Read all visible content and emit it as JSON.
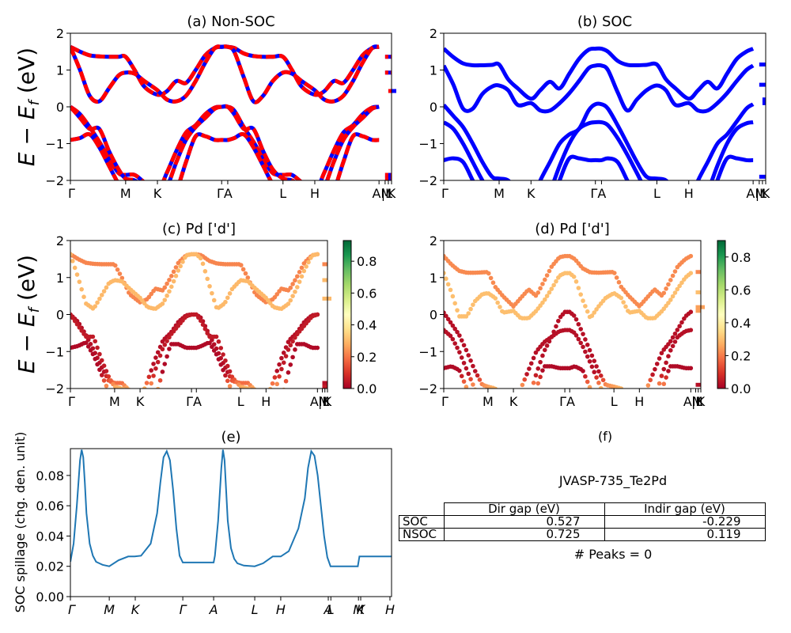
{
  "chart_data": [
    {
      "id": "a",
      "type": "line",
      "title": "(a) Non-SOC",
      "ylabel": "E − E_f (eV)",
      "ylim": [
        -2,
        2
      ],
      "yticks": [
        -2,
        -1,
        0,
        1,
        2
      ],
      "kpath_ticks": [
        {
          "label": "Γ",
          "k": 0.0
        },
        {
          "label": "M",
          "k": 0.172
        },
        {
          "label": "K",
          "k": 0.271
        },
        {
          "label": "ΓA",
          "k": 0.48
        },
        {
          "label": "L",
          "k": 0.662
        },
        {
          "label": "H",
          "k": 0.761
        },
        {
          "label": "AM",
          "k": 0.97
        },
        {
          "label": "|L",
          "k": 0.985
        },
        {
          "label": "K",
          "k": 1.0
        }
      ],
      "tick_marks_k": [
        0,
        0.172,
        0.271,
        0.471,
        0.49,
        0.662,
        0.761,
        0.961,
        0.98,
        0.99,
        1.0
      ],
      "style": "red-blue-dashed",
      "k": [
        0,
        0.03,
        0.06,
        0.09,
        0.12,
        0.15,
        0.172,
        0.2,
        0.23,
        0.271,
        0.3,
        0.33,
        0.36,
        0.39,
        0.42,
        0.45,
        0.471,
        0.49,
        0.51,
        0.54,
        0.57,
        0.6,
        0.63,
        0.662,
        0.69,
        0.72,
        0.761,
        0.79,
        0.82,
        0.85,
        0.88,
        0.91,
        0.94,
        0.961
      ],
      "bands": [
        [
          1.63,
          1.5,
          1.4,
          1.37,
          1.36,
          1.36,
          1.36,
          1.0,
          0.55,
          0.33,
          0.42,
          0.7,
          0.65,
          1.0,
          1.4,
          1.6,
          1.63,
          1.63,
          1.6,
          1.45,
          1.38,
          1.36,
          1.36,
          1.36,
          1.0,
          0.55,
          0.33,
          0.42,
          0.7,
          0.65,
          1.0,
          1.4,
          1.6,
          1.63
        ],
        [
          1.63,
          1.0,
          0.3,
          0.15,
          0.5,
          0.85,
          0.93,
          0.9,
          0.7,
          0.45,
          0.2,
          0.15,
          0.3,
          0.7,
          1.2,
          1.6,
          1.63,
          1.63,
          1.5,
          0.8,
          0.15,
          0.3,
          0.7,
          0.93,
          0.9,
          0.7,
          0.45,
          0.2,
          0.15,
          0.3,
          0.7,
          1.2,
          1.6,
          1.63
        ],
        [
          0.0,
          -0.2,
          -0.55,
          -0.95,
          -1.4,
          -1.8,
          -1.85,
          -1.85,
          -2.05,
          -2.3,
          -1.8,
          -1.2,
          -0.7,
          -0.5,
          -0.2,
          -0.02,
          0.0,
          0.0,
          -0.1,
          -0.55,
          -0.95,
          -1.4,
          -1.8,
          -1.85,
          -1.85,
          -2.05,
          -2.3,
          -1.8,
          -1.2,
          -0.7,
          -0.5,
          -0.2,
          -0.02,
          0.0
        ],
        [
          0.0,
          -0.3,
          -0.6,
          -0.6,
          -1.2,
          -1.7,
          -1.95,
          -2.0,
          -2.2,
          -2.5,
          -2.2,
          -1.5,
          -0.9,
          -0.55,
          -0.3,
          -0.05,
          0.0,
          0.0,
          -0.2,
          -0.6,
          -0.6,
          -1.2,
          -1.7,
          -1.95,
          -2.0,
          -2.2,
          -2.5,
          -2.2,
          -1.5,
          -0.9,
          -0.55,
          -0.3,
          -0.05,
          0.0
        ],
        [
          -0.9,
          -0.85,
          -0.75,
          -1.1,
          -1.6,
          -2.1,
          -2.4,
          -2.6,
          -2.8,
          -3.0,
          -2.8,
          -2.3,
          -1.5,
          -0.8,
          -0.8,
          -0.9,
          -0.9,
          -0.9,
          -0.85,
          -0.75,
          -1.1,
          -1.6,
          -2.1,
          -2.4,
          -2.6,
          -2.8,
          -3.0,
          -2.8,
          -2.3,
          -1.5,
          -0.8,
          -0.8,
          -0.9,
          -0.9
        ]
      ],
      "tail_segment": [
        1.36,
        0.93,
        0.43,
        -1.85,
        -1.95
      ]
    },
    {
      "id": "b",
      "type": "line",
      "title": "(b) SOC",
      "ylim": [
        -2,
        2
      ],
      "yticks": [
        -2,
        -1,
        0,
        1,
        2
      ],
      "kpath_ticks": [
        {
          "label": "Γ",
          "k": 0.0
        },
        {
          "label": "M",
          "k": 0.172
        },
        {
          "label": "K",
          "k": 0.271
        },
        {
          "label": "ΓA",
          "k": 0.48
        },
        {
          "label": "L",
          "k": 0.662
        },
        {
          "label": "H",
          "k": 0.761
        },
        {
          "label": "AM",
          "k": 0.97
        },
        {
          "label": "|L",
          "k": 0.985
        },
        {
          "label": "K",
          "k": 1.0
        }
      ],
      "tick_marks_k": [
        0,
        0.172,
        0.271,
        0.471,
        0.49,
        0.662,
        0.761,
        0.961,
        0.98,
        0.99,
        1.0
      ],
      "style": "blue",
      "k": [
        0,
        0.03,
        0.06,
        0.09,
        0.12,
        0.15,
        0.172,
        0.2,
        0.23,
        0.271,
        0.3,
        0.33,
        0.36,
        0.39,
        0.42,
        0.45,
        0.471,
        0.49,
        0.51,
        0.54,
        0.57,
        0.6,
        0.63,
        0.662,
        0.69,
        0.72,
        0.761,
        0.79,
        0.82,
        0.85,
        0.88,
        0.91,
        0.94,
        0.961
      ],
      "bands": [
        [
          1.58,
          1.35,
          1.18,
          1.13,
          1.13,
          1.14,
          1.15,
          0.75,
          0.5,
          0.22,
          0.45,
          0.68,
          0.5,
          0.9,
          1.3,
          1.55,
          1.58,
          1.58,
          1.5,
          1.25,
          1.14,
          1.13,
          1.14,
          1.15,
          0.75,
          0.5,
          0.22,
          0.45,
          0.68,
          0.5,
          0.9,
          1.3,
          1.5,
          1.58
        ],
        [
          1.12,
          0.6,
          -0.05,
          -0.05,
          0.35,
          0.55,
          0.58,
          0.45,
          0.05,
          0.1,
          -0.1,
          -0.1,
          0.1,
          0.37,
          0.7,
          1.05,
          1.12,
          1.12,
          1.0,
          0.4,
          -0.1,
          0.2,
          0.45,
          0.58,
          0.45,
          0.05,
          0.1,
          -0.1,
          -0.1,
          0.1,
          0.37,
          0.7,
          1.0,
          1.12
        ],
        [
          0.05,
          -0.25,
          -0.55,
          -1.0,
          -1.5,
          -1.9,
          -1.95,
          -2.0,
          -2.3,
          -2.6,
          -2.0,
          -1.5,
          -1.0,
          -0.75,
          -0.6,
          -0.1,
          0.07,
          0.07,
          -0.05,
          -0.5,
          -1.0,
          -1.5,
          -1.9,
          -1.95,
          -2.0,
          -2.3,
          -2.6,
          -2.0,
          -1.5,
          -1.0,
          -0.75,
          -0.4,
          -0.05,
          0.07
        ],
        [
          -0.42,
          -0.6,
          -1.0,
          -1.5,
          -2.0,
          -2.4,
          -2.6,
          -2.8,
          -3.0,
          -3.2,
          -2.8,
          -2.3,
          -1.6,
          -1.0,
          -0.6,
          -0.45,
          -0.42,
          -0.42,
          -0.5,
          -0.85,
          -1.3,
          -1.8,
          -2.3,
          -2.6,
          -2.8,
          -3.0,
          -3.2,
          -2.8,
          -2.3,
          -1.6,
          -1.0,
          -0.6,
          -0.45,
          -0.42
        ],
        [
          -1.45,
          -1.4,
          -1.5,
          -2.0,
          -2.5,
          -2.9,
          -3.1,
          -3.2,
          -3.3,
          -3.4,
          -3.2,
          -2.8,
          -2.0,
          -1.4,
          -1.4,
          -1.45,
          -1.45,
          -1.45,
          -1.4,
          -1.5,
          -2.0,
          -2.5,
          -2.9,
          -3.1,
          -3.2,
          -3.3,
          -3.4,
          -3.2,
          -2.8,
          -2.0,
          -1.4,
          -1.4,
          -1.45,
          -1.45
        ]
      ],
      "tail_segment": [
        1.15,
        0.6,
        0.2,
        0.1,
        -1.9
      ]
    },
    {
      "id": "c",
      "type": "scatter",
      "title": "(c)  Pd ['d']",
      "ylabel": "E − E_f (eV)",
      "ylim": [
        -2,
        2
      ],
      "yticks": [
        -2,
        -1,
        0,
        1,
        2
      ],
      "colorbar": {
        "cmap": "RdYlGn",
        "range": [
          0,
          0.93
        ],
        "ticks": [
          0.0,
          0.2,
          0.4,
          0.6,
          0.8
        ]
      },
      "kpath_ticks": [
        {
          "label": "Γ",
          "k": 0.0
        },
        {
          "label": "M",
          "k": 0.172
        },
        {
          "label": "K",
          "k": 0.271
        },
        {
          "label": "ΓA",
          "k": 0.48
        },
        {
          "label": "L",
          "k": 0.662
        },
        {
          "label": "H",
          "k": 0.761
        },
        {
          "label": "AM",
          "k": 0.97
        },
        {
          "label": "|L",
          "k": 0.985
        },
        {
          "label": "K",
          "k": 1.0
        }
      ],
      "tick_marks_k": [
        0,
        0.172,
        0.271,
        0.471,
        0.49,
        0.662,
        0.761,
        0.961,
        0.98,
        0.99,
        1.0
      ],
      "source": "a",
      "band_weights": [
        0.22,
        0.3,
        0.03,
        0.05,
        0.02
      ],
      "tail_weights": [
        0.22,
        0.3,
        0.3,
        0.03,
        0.05
      ]
    },
    {
      "id": "d",
      "type": "scatter",
      "title": "(d) Pd ['d']",
      "ylim": [
        -2,
        2
      ],
      "yticks": [
        -2,
        -1,
        0,
        1,
        2
      ],
      "colorbar": {
        "cmap": "RdYlGn",
        "range": [
          0,
          0.9
        ],
        "ticks": [
          0.0,
          0.2,
          0.4,
          0.6,
          0.8
        ]
      },
      "kpath_ticks": [
        {
          "label": "Γ",
          "k": 0.0
        },
        {
          "label": "M",
          "k": 0.172
        },
        {
          "label": "K",
          "k": 0.271
        },
        {
          "label": "ΓA",
          "k": 0.48
        },
        {
          "label": "L",
          "k": 0.662
        },
        {
          "label": "H",
          "k": 0.761
        },
        {
          "label": "AM",
          "k": 0.97
        },
        {
          "label": "|L",
          "k": 0.985
        },
        {
          "label": "K",
          "k": 1.0
        }
      ],
      "tick_marks_k": [
        0,
        0.172,
        0.271,
        0.471,
        0.49,
        0.662,
        0.761,
        0.961,
        0.98,
        0.99,
        1.0
      ],
      "source": "b",
      "band_weights": [
        0.22,
        0.3,
        0.03,
        0.03,
        0.02
      ],
      "tail_weights": [
        0.22,
        0.3,
        0.25,
        0.25,
        0.03
      ]
    },
    {
      "id": "e",
      "type": "line",
      "title": "(e)",
      "ylabel": "SOC spillage (chg. den. unit)",
      "ylim": [
        0,
        0.0977
      ],
      "yticks": [
        0.0,
        0.02,
        0.04,
        0.06,
        0.08
      ],
      "ytick_labels": [
        "0.00",
        "0.02",
        "0.04",
        "0.06",
        "0.08"
      ],
      "color": "#1f77b4",
      "kpath_ticks": [
        {
          "label": "Γ",
          "k": 0.0
        },
        {
          "label": "M",
          "k": 0.121
        },
        {
          "label": "K",
          "k": 0.202
        },
        {
          "label": "Γ",
          "k": 0.35
        },
        {
          "label": "A",
          "k": 0.446
        },
        {
          "label": "L",
          "k": 0.574
        },
        {
          "label": "H",
          "k": 0.655
        },
        {
          "label": "A",
          "k": 0.803
        },
        {
          "label": "L",
          "k": 0.811
        },
        {
          "label": "M",
          "k": 0.897
        },
        {
          "label": "K",
          "k": 0.904
        },
        {
          "label": "H",
          "k": 0.995
        }
      ],
      "x": [
        0,
        0.01,
        0.02,
        0.03,
        0.035,
        0.04,
        0.045,
        0.05,
        0.06,
        0.07,
        0.08,
        0.1,
        0.121,
        0.15,
        0.18,
        0.2,
        0.22,
        0.25,
        0.27,
        0.28,
        0.29,
        0.3,
        0.31,
        0.32,
        0.33,
        0.34,
        0.35,
        0.38,
        0.41,
        0.446,
        0.45,
        0.46,
        0.47,
        0.475,
        0.48,
        0.485,
        0.49,
        0.5,
        0.51,
        0.52,
        0.54,
        0.574,
        0.6,
        0.63,
        0.655,
        0.68,
        0.71,
        0.73,
        0.74,
        0.75,
        0.76,
        0.77,
        0.78,
        0.79,
        0.8,
        0.81,
        0.85,
        0.89,
        0.895,
        0.9,
        0.95,
        1.0
      ],
      "y": [
        0.023,
        0.035,
        0.06,
        0.09,
        0.097,
        0.092,
        0.075,
        0.055,
        0.035,
        0.027,
        0.023,
        0.021,
        0.02,
        0.024,
        0.0265,
        0.0265,
        0.027,
        0.035,
        0.055,
        0.075,
        0.092,
        0.096,
        0.09,
        0.07,
        0.045,
        0.027,
        0.0225,
        0.0225,
        0.0225,
        0.0225,
        0.027,
        0.05,
        0.085,
        0.097,
        0.09,
        0.07,
        0.05,
        0.032,
        0.025,
        0.022,
        0.0205,
        0.02,
        0.022,
        0.0265,
        0.0265,
        0.03,
        0.045,
        0.065,
        0.085,
        0.096,
        0.093,
        0.08,
        0.06,
        0.04,
        0.026,
        0.02,
        0.02,
        0.02,
        0.02,
        0.0265,
        0.0265,
        0.0265
      ]
    }
  ],
  "panel_f": {
    "title": "(f)",
    "material": "JVASP-735_Te2Pd",
    "table": {
      "columns": [
        "Dir gap (eV)",
        "Indir gap (eV)"
      ],
      "rows": [
        {
          "label": "SOC",
          "values": [
            "0.527",
            "-0.229"
          ]
        },
        {
          "label": "NSOC",
          "values": [
            "0.725",
            "0.119"
          ]
        }
      ]
    },
    "peaks": "# Peaks = 0"
  }
}
